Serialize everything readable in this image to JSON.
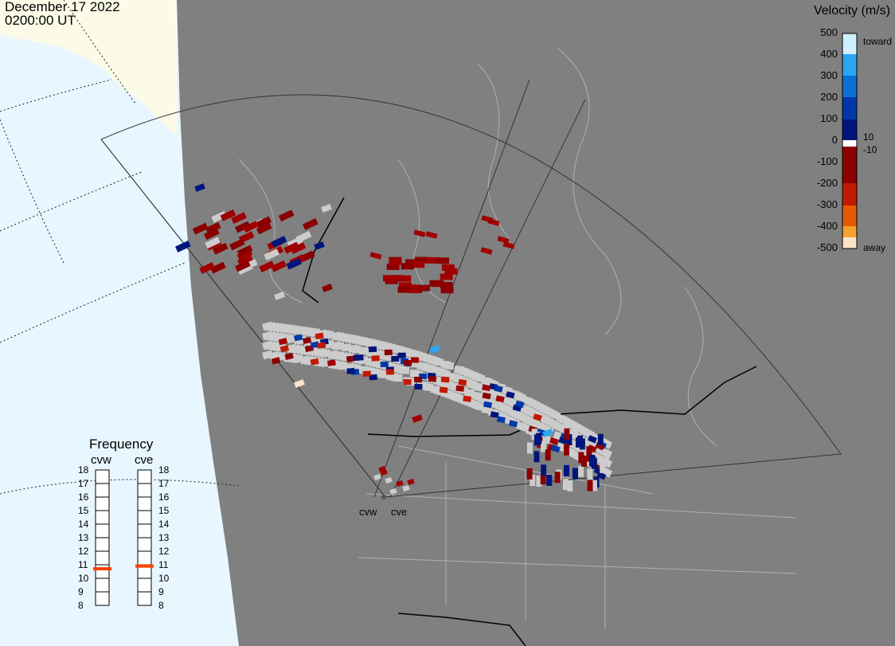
{
  "header": {
    "date": "December 17 2022",
    "time": "0200:00 UT"
  },
  "colorbar": {
    "title": "Velocity (m/s)",
    "ticks": [
      "500",
      "400",
      "300",
      "200",
      "100",
      "0",
      "-100",
      "-200",
      "-300",
      "-400",
      "-500"
    ],
    "inner_labels": [
      "10",
      "-10"
    ],
    "toward_label": "toward",
    "away_label": "away",
    "colors": [
      "#cfeefe",
      "#2aa6f3",
      "#0b6fd4",
      "#0037a6",
      "#00157b",
      "#ffffff",
      "#8a0000",
      "#c01a00",
      "#e45a00",
      "#f5a030",
      "#fde4c8"
    ]
  },
  "radars": [
    {
      "code": "cvw",
      "frequency_mhz": 10.7
    },
    {
      "code": "cve",
      "frequency_mhz": 10.9
    }
  ],
  "frequency_panel": {
    "title": "Frequency",
    "scale": [
      "18",
      "17",
      "16",
      "15",
      "14",
      "13",
      "12",
      "11",
      "10",
      "9",
      "8"
    ],
    "min": 8,
    "max": 18
  },
  "map_colors": {
    "ocean": "#e8f6ff",
    "land_north": "#fcfbe8",
    "projection_area": "#808080",
    "ground_scatter": "#cccccc",
    "marker": "#ff4400"
  }
}
